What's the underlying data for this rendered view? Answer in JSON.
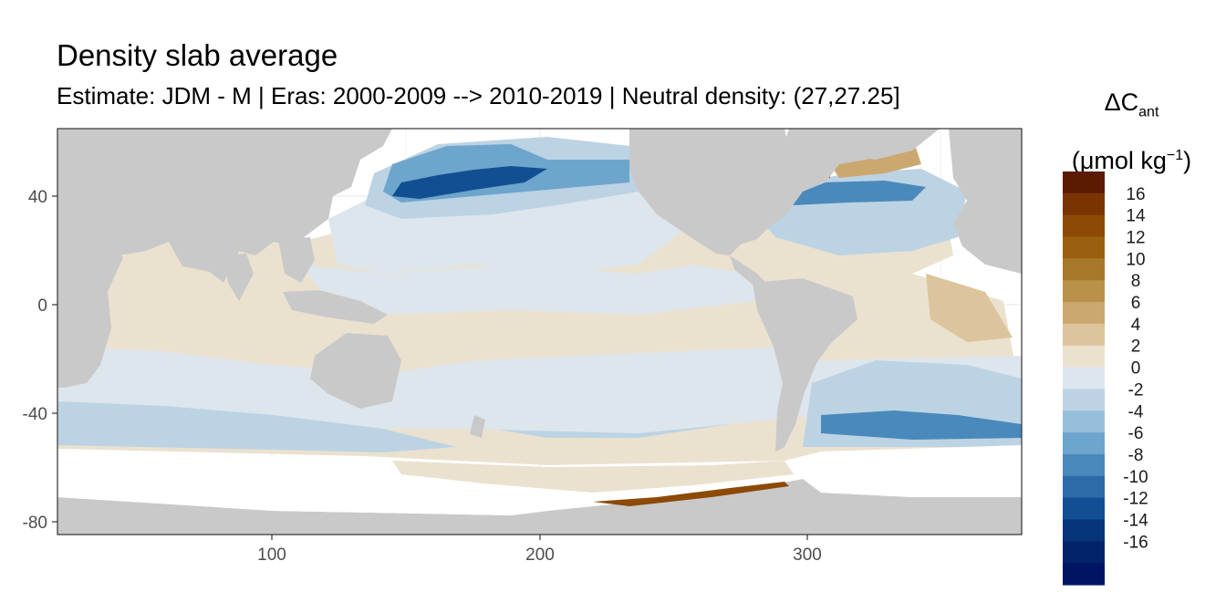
{
  "title": "Density slab average",
  "subtitle": "Estimate: JDM - M | Eras: 2000-2009 --> 2010-2019 | Neutral density: (27,27.25]",
  "legend": {
    "title_main": "ΔC",
    "title_sub": "ant",
    "unit_pre": "(μmol kg",
    "unit_sup": "−1",
    "unit_post": ")",
    "labels": [
      "16",
      "14",
      "12",
      "10",
      "8",
      "6",
      "4",
      "2",
      "0",
      "-2",
      "-4",
      "-6",
      "-8",
      "-10",
      "-12",
      "-14",
      "-16"
    ],
    "colors": [
      "#5c1a02",
      "#7a3403",
      "#8c4a06",
      "#9a6010",
      "#a8782a",
      "#b9914a",
      "#cba870",
      "#dcc59c",
      "#ebe1cf",
      "#dde6ec",
      "#bcd3e4",
      "#97bfdb",
      "#6ea5cc",
      "#4a89bb",
      "#2d6ba8",
      "#124f92",
      "#06357a",
      "#02226a",
      "#001464"
    ]
  },
  "axes": {
    "x_ticks": [
      "100",
      "200",
      "300"
    ],
    "y_ticks": [
      "40",
      "0",
      "-40",
      "-80"
    ]
  },
  "colors": {
    "land": "#c9c9c9",
    "background": "#ffffff",
    "frame": "#333333",
    "grid": "#ebebeb"
  }
}
